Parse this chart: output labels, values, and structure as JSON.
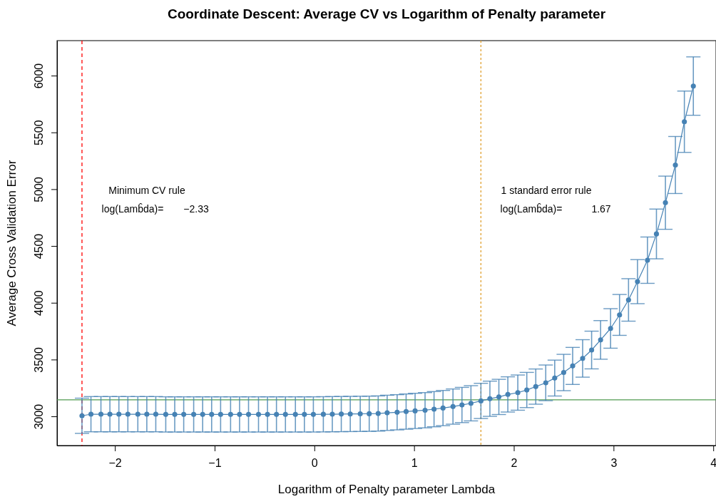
{
  "chart_data": {
    "type": "line",
    "title": "Coordinate Descent: Average CV vs Logarithm of Penalty parameter",
    "xlabel": "Logarithm of Penalty parameter Lambda",
    "ylabel": "Average Cross Validation Error",
    "x": [
      -2.33,
      -2.24,
      -2.14,
      -2.05,
      -1.96,
      -1.87,
      -1.77,
      -1.68,
      -1.59,
      -1.49,
      -1.4,
      -1.31,
      -1.21,
      -1.12,
      -1.03,
      -0.94,
      -0.84,
      -0.75,
      -0.66,
      -0.56,
      -0.47,
      -0.38,
      -0.29,
      -0.19,
      -0.1,
      -0.01,
      0.09,
      0.18,
      0.27,
      0.36,
      0.46,
      0.55,
      0.64,
      0.73,
      0.83,
      0.92,
      1.01,
      1.11,
      1.2,
      1.29,
      1.39,
      1.48,
      1.57,
      1.67,
      1.76,
      1.85,
      1.94,
      2.04,
      2.13,
      2.22,
      2.32,
      2.41,
      2.5,
      2.59,
      2.69,
      2.78,
      2.87,
      2.97,
      3.06,
      3.15,
      3.24,
      3.34,
      3.43,
      3.52,
      3.62,
      3.71,
      3.8
    ],
    "series": [
      {
        "color": "#4682b4",
        "values": [
          3005,
          3019,
          3019,
          3019,
          3019,
          3019,
          3019,
          3019,
          3019,
          3017,
          3017,
          3017,
          3017,
          3017,
          3017,
          3017,
          3017,
          3017,
          3017,
          3017,
          3017,
          3017,
          3017,
          3017,
          3017,
          3017,
          3018,
          3019,
          3020,
          3021,
          3022,
          3023,
          3025,
          3031,
          3036,
          3042,
          3048,
          3054,
          3063,
          3073,
          3086,
          3100,
          3115,
          3136,
          3155,
          3171,
          3193,
          3209,
          3232,
          3262,
          3295,
          3337,
          3386,
          3444,
          3510,
          3584,
          3673,
          3774,
          3893,
          4025,
          4186,
          4375,
          4606,
          4881,
          5213,
          5594,
          5908
        ],
        "errors": [
          155,
          155,
          155,
          155,
          155,
          155,
          155,
          155,
          155,
          155,
          155,
          155,
          155,
          155,
          155,
          155,
          155,
          155,
          155,
          155,
          155,
          155,
          155,
          155,
          155,
          155,
          155,
          155,
          155,
          155,
          155,
          155,
          155,
          155,
          155,
          155,
          155,
          155,
          155,
          155,
          155,
          155,
          155,
          155,
          155,
          155,
          155,
          155,
          155,
          155,
          157,
          158,
          160,
          163,
          165,
          166,
          170,
          174,
          180,
          187,
          194,
          204,
          219,
          234,
          251,
          270,
          257
        ]
      }
    ],
    "marker": "circle",
    "line_style": "solid",
    "xlim": [
      -2.58,
      4.02
    ],
    "xticks": [
      {
        "value": -2,
        "label": "−2"
      },
      {
        "value": -1,
        "label": "−1"
      },
      0,
      1,
      2,
      3,
      4
    ],
    "ylim": [
      2743,
      6308
    ],
    "yticks": [
      3000,
      3500,
      4000,
      4500,
      5000,
      5500,
      6000
    ],
    "ref_lines": [
      {
        "axis": "x",
        "value": -2.33,
        "color": "#ff0000",
        "line_style": "dashed"
      },
      {
        "axis": "x",
        "value": 1.67,
        "color": "#e0a030",
        "line_style": "dotted"
      },
      {
        "axis": "y",
        "value": 3146,
        "color": "#4f9a4f",
        "line_style": "solid"
      }
    ],
    "annotations": [
      "Minimum CV rule",
      "log(Lamb̂da)=",
      "−2.33",
      "1 standard error rule",
      "log(Lamb̂da)=",
      "1.67"
    ]
  }
}
